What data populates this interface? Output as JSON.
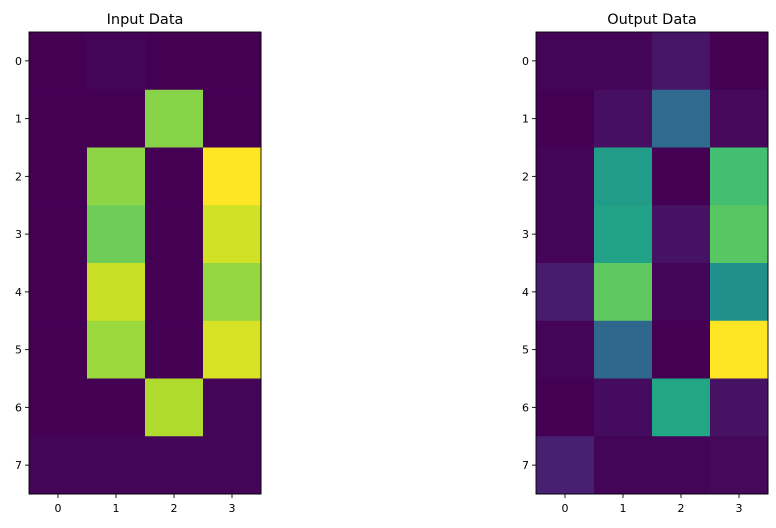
{
  "chart_data": [
    {
      "type": "heatmap",
      "title": "Input Data",
      "xlabel": "",
      "ylabel": "",
      "x_ticks": [
        "0",
        "1",
        "2",
        "3"
      ],
      "y_ticks": [
        "0",
        "1",
        "2",
        "3",
        "4",
        "5",
        "6",
        "7"
      ],
      "colormap": "viridis",
      "value_range": [
        0,
        1
      ],
      "values": [
        [
          0.0,
          0.01,
          0.0,
          0.0
        ],
        [
          0.0,
          0.0,
          0.82,
          0.0
        ],
        [
          0.0,
          0.83,
          0.0,
          1.0
        ],
        [
          0.0,
          0.78,
          0.0,
          0.93
        ],
        [
          0.0,
          0.92,
          0.0,
          0.84
        ],
        [
          0.0,
          0.85,
          0.0,
          0.94
        ],
        [
          0.0,
          0.0,
          0.88,
          0.01
        ],
        [
          0.01,
          0.01,
          0.01,
          0.01
        ]
      ]
    },
    {
      "type": "heatmap",
      "title": "Output Data",
      "xlabel": "",
      "ylabel": "",
      "x_ticks": [
        "0",
        "1",
        "2",
        "3"
      ],
      "y_ticks": [
        "0",
        "1",
        "2",
        "3",
        "4",
        "5",
        "6",
        "7"
      ],
      "colormap": "viridis",
      "value_range": [
        0,
        1
      ],
      "values": [
        [
          0.01,
          0.01,
          0.06,
          0.0
        ],
        [
          0.0,
          0.04,
          0.35,
          0.02
        ],
        [
          0.01,
          0.55,
          0.0,
          0.7
        ],
        [
          0.01,
          0.58,
          0.05,
          0.74
        ],
        [
          0.08,
          0.75,
          0.01,
          0.5
        ],
        [
          0.01,
          0.34,
          0.0,
          1.0
        ],
        [
          0.0,
          0.03,
          0.6,
          0.05
        ],
        [
          0.09,
          0.01,
          0.01,
          0.02
        ]
      ]
    }
  ]
}
